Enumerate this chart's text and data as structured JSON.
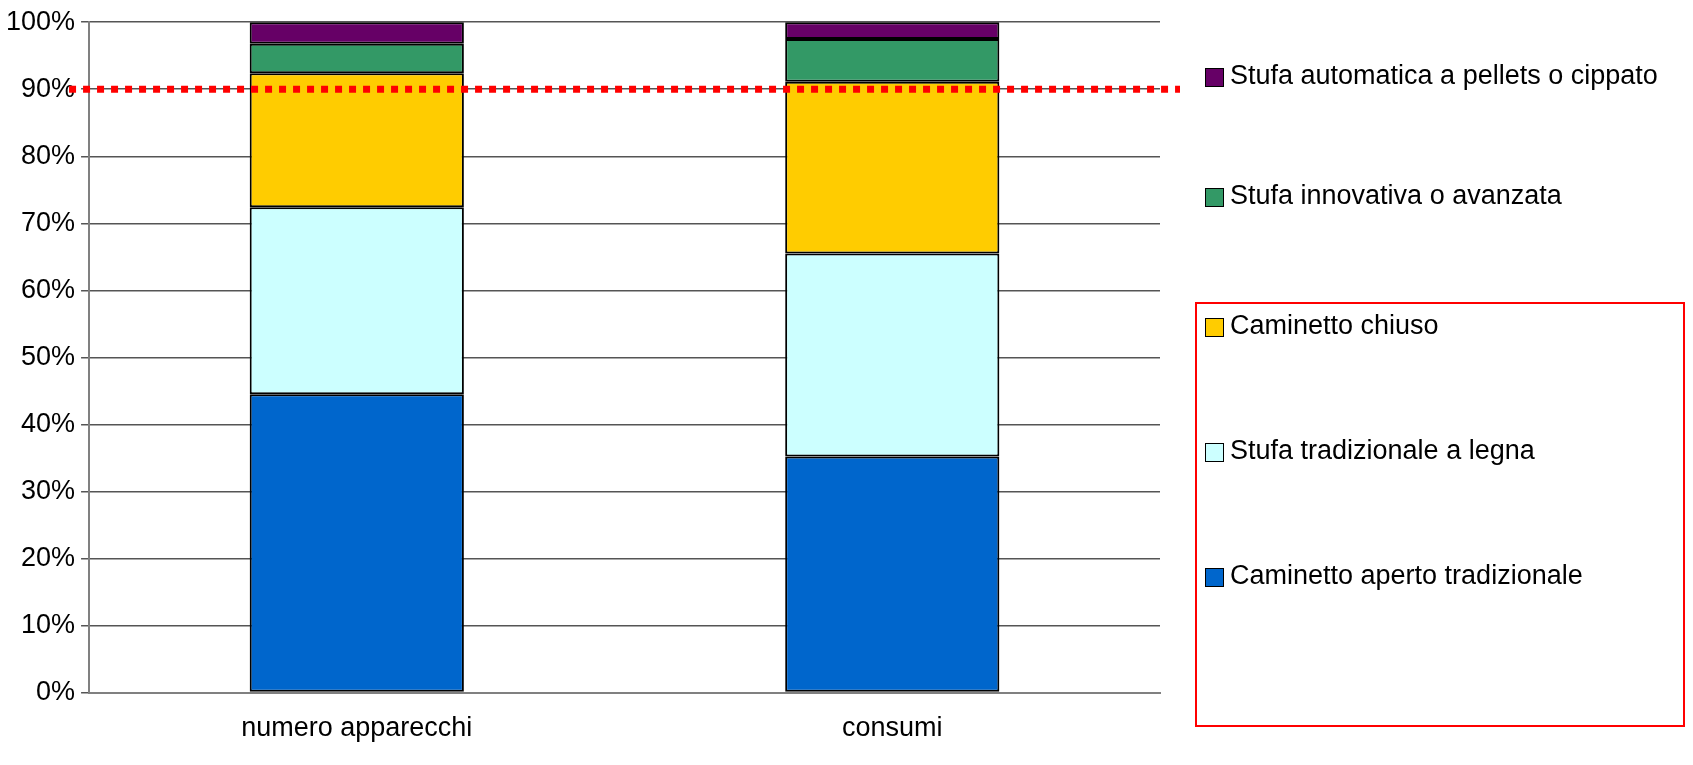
{
  "chart_data": {
    "type": "bar",
    "stacked": true,
    "categories": [
      "numero apparecchi",
      "consumi"
    ],
    "series": [
      {
        "name": "Caminetto aperto tradizionale",
        "color": "#0066cc",
        "values": [
          44.5,
          35.2
        ]
      },
      {
        "name": "Stufa tradizionale a legna",
        "color": "#ccffff",
        "values": [
          27.9,
          30.3
        ]
      },
      {
        "name": "Caminetto chiuso",
        "color": "#ffcc00",
        "values": [
          20.0,
          25.6
        ]
      },
      {
        "name": "Stufa innovativa o avanzata",
        "color": "#339966",
        "values": [
          4.4,
          6.4
        ]
      },
      {
        "name": "Stufa automatica a pellets o cippato",
        "color": "#660066",
        "values": [
          3.2,
          2.5
        ]
      }
    ],
    "ylim": [
      0,
      100
    ],
    "yticks": [
      {
        "value": 0,
        "label": "0%"
      },
      {
        "value": 10,
        "label": "10%"
      },
      {
        "value": 20,
        "label": "20%"
      },
      {
        "value": 30,
        "label": "30%"
      },
      {
        "value": 40,
        "label": "40%"
      },
      {
        "value": 50,
        "label": "50%"
      },
      {
        "value": 60,
        "label": "60%"
      },
      {
        "value": 70,
        "label": "70%"
      },
      {
        "value": 80,
        "label": "80%"
      },
      {
        "value": 90,
        "label": "90%"
      },
      {
        "value": 100,
        "label": "100%"
      }
    ],
    "grid": "y",
    "legend": "right",
    "ref_lines": [
      {
        "axis": "y",
        "value": 90,
        "color": "#ff0000",
        "line_style": "dotted"
      }
    ]
  }
}
